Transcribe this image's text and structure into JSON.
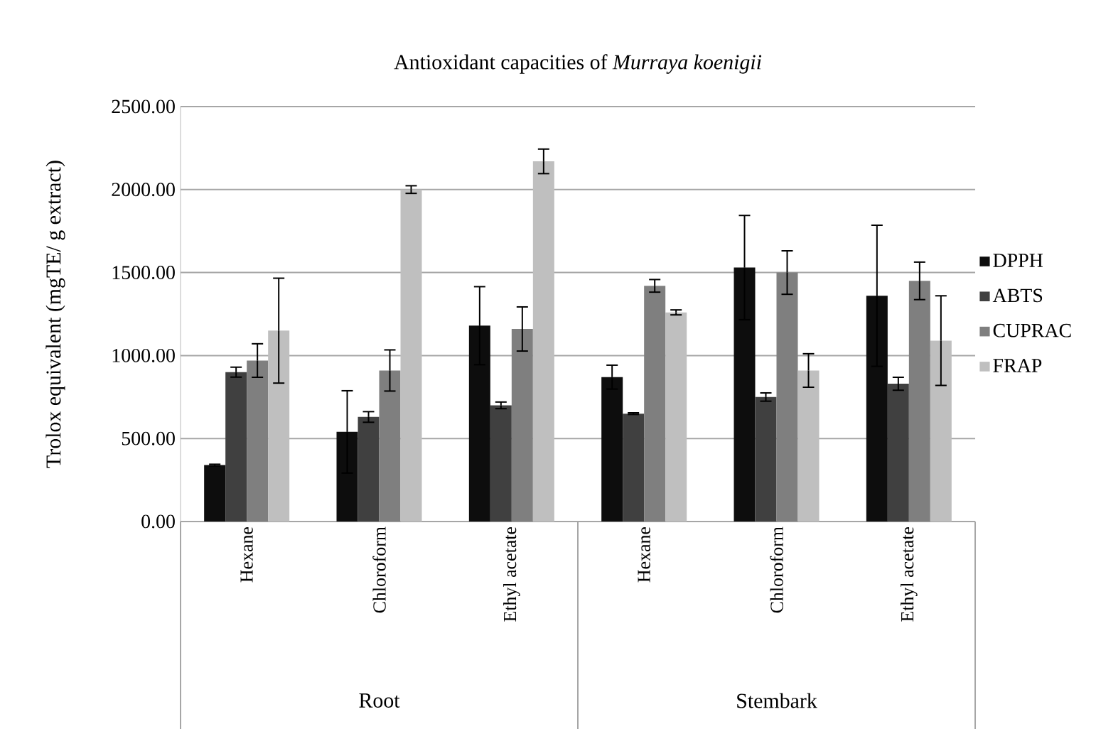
{
  "chart_data": {
    "type": "bar",
    "title": "Antioxidant capacities of *Murraya koenigii*",
    "ylabel": "Trolox equivalent (mgTE/ g extract)",
    "categories": [
      "Hexane",
      "Chloroform",
      "Ethyl acetate",
      "Hexane",
      "Chloroform",
      "Ethyl acetate"
    ],
    "annotations": [
      "Root",
      "Stembark"
    ],
    "series": [
      {
        "name": "DPPH",
        "color": "#0d0d0d",
        "values": [
          340,
          540,
          1180,
          870,
          1530,
          1360
        ],
        "errors": [
          5,
          248,
          235,
          72,
          314,
          425
        ]
      },
      {
        "name": "ABTS",
        "color": "#404040",
        "values": [
          900,
          630,
          700,
          650,
          750,
          830
        ],
        "errors": [
          30,
          32,
          20,
          5,
          25,
          39
        ]
      },
      {
        "name": "CUPRAC",
        "color": "#7f7f7f",
        "values": [
          970,
          910,
          1160,
          1420,
          1500,
          1450
        ],
        "errors": [
          101,
          124,
          133,
          38,
          131,
          113
        ]
      },
      {
        "name": "FRAP",
        "color": "#bfbfbf",
        "values": [
          1150,
          2000,
          2170,
          1260,
          910,
          1090
        ],
        "errors": [
          316,
          23,
          74,
          15,
          101,
          270
        ]
      }
    ],
    "ylim": [
      0,
      2500
    ],
    "yticks": [
      {
        "value": 0,
        "label": "0.00"
      },
      {
        "value": 500,
        "label": "500.00"
      },
      {
        "value": 1000,
        "label": "1000.00"
      },
      {
        "value": 1500,
        "label": "1500.00"
      },
      {
        "value": 2000,
        "label": "2000.00"
      },
      {
        "value": 2500,
        "label": "2500.00"
      }
    ],
    "grid": "y",
    "legend": "right"
  }
}
